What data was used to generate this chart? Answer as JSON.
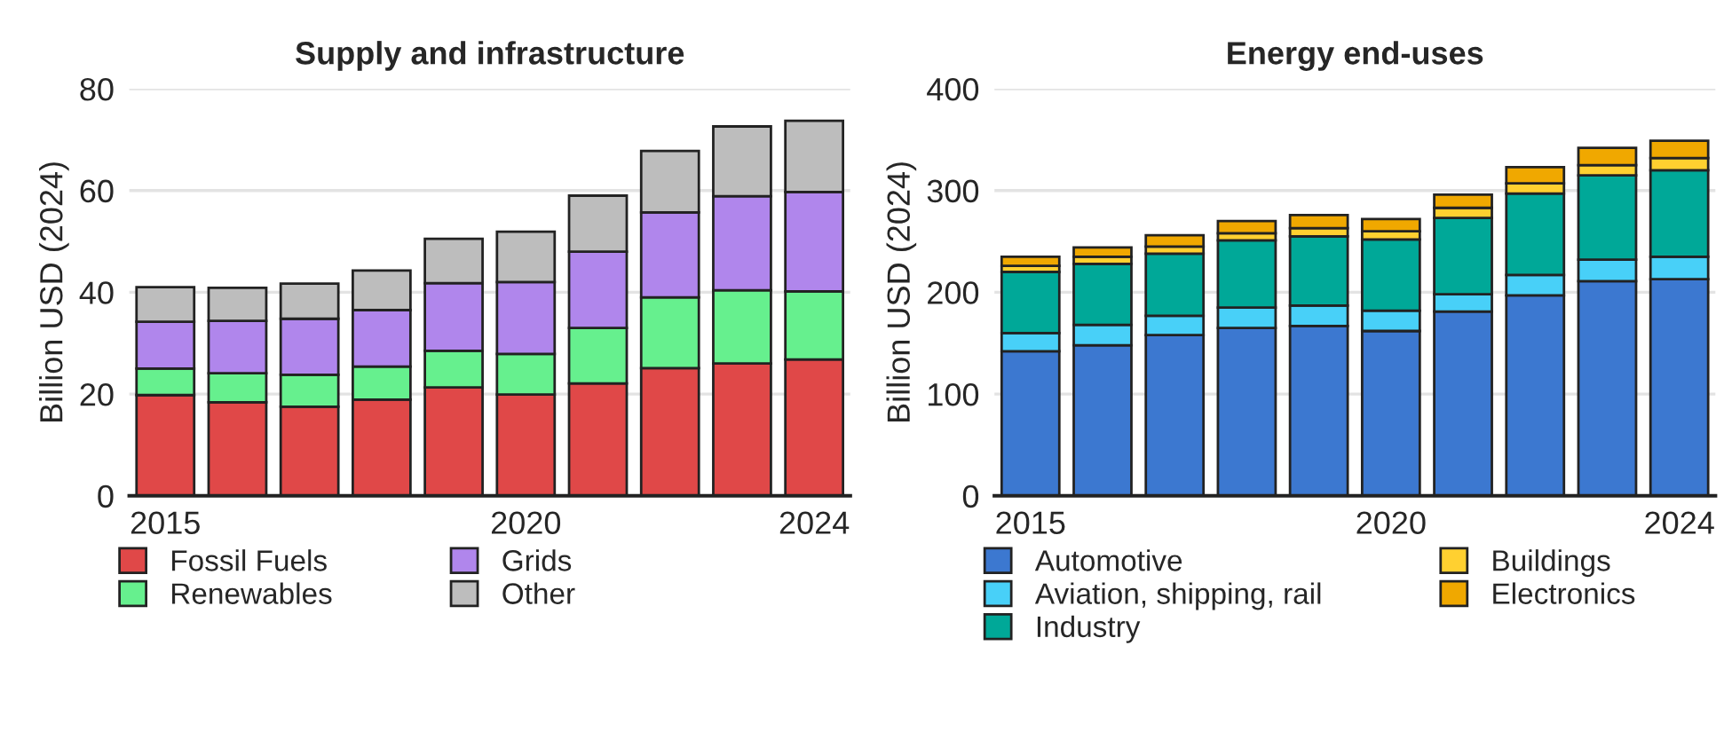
{
  "chart_data": [
    {
      "type": "bar",
      "title": "Supply and infrastructure",
      "ylabel": "Billion USD (2024)",
      "stacked": true,
      "x": [
        2015,
        2016,
        2017,
        2018,
        2019,
        2020,
        2021,
        2022,
        2023,
        2024
      ],
      "xlim": [
        2014.5,
        2024.5
      ],
      "xticks": [
        2015,
        2020,
        2024
      ],
      "ylim": [
        0,
        80
      ],
      "yticks": [
        0,
        20,
        40,
        60,
        80
      ],
      "grid": "y",
      "legend": "bottom",
      "series": [
        {
          "name": "Fossil Fuels",
          "color": "#e04848",
          "values": [
            19.8,
            18.4,
            17.5,
            18.9,
            21.3,
            19.9,
            22.1,
            25.1,
            26.0,
            26.8
          ]
        },
        {
          "name": "Renewables",
          "color": "#66f08e",
          "values": [
            5.2,
            5.7,
            6.3,
            6.5,
            7.2,
            8.0,
            10.9,
            13.9,
            14.4,
            13.4
          ]
        },
        {
          "name": "Grids",
          "color": "#b086ec",
          "values": [
            9.2,
            10.3,
            11.0,
            11.1,
            13.3,
            14.1,
            15.0,
            16.7,
            18.5,
            19.5
          ]
        },
        {
          "name": "Other",
          "color": "#bdbdbd",
          "values": [
            6.8,
            6.5,
            6.9,
            7.8,
            8.7,
            9.9,
            11.0,
            12.1,
            13.7,
            14.0
          ]
        }
      ]
    },
    {
      "type": "bar",
      "title": "Energy end-uses",
      "ylabel": "Billion USD (2024)",
      "stacked": true,
      "x": [
        2015,
        2016,
        2017,
        2018,
        2019,
        2020,
        2021,
        2022,
        2023,
        2024
      ],
      "xlim": [
        2014.5,
        2024.5
      ],
      "xticks": [
        2015,
        2020,
        2024
      ],
      "ylim": [
        0,
        400
      ],
      "yticks": [
        0,
        100,
        200,
        300,
        400
      ],
      "grid": "y",
      "legend": "bottom",
      "series": [
        {
          "name": "Automotive",
          "color": "#3c78d0",
          "values": [
            142,
            148,
            158,
            165,
            167,
            162,
            181,
            197,
            211,
            213
          ]
        },
        {
          "name": "Aviation, shipping, rail",
          "color": "#48d0f8",
          "values": [
            18,
            20,
            19,
            20,
            20,
            20,
            17,
            20,
            21,
            22
          ]
        },
        {
          "name": "Industry",
          "color": "#00a898",
          "values": [
            60,
            60,
            61,
            66,
            68,
            70,
            75,
            80,
            83,
            85
          ]
        },
        {
          "name": "Buildings",
          "color": "#ffd030",
          "values": [
            6,
            7,
            7,
            7,
            8,
            8,
            10,
            10,
            10,
            12
          ]
        },
        {
          "name": "Electronics",
          "color": "#f0a800",
          "values": [
            9,
            9,
            11,
            12,
            13,
            12,
            13,
            16,
            17,
            17
          ]
        }
      ]
    }
  ]
}
